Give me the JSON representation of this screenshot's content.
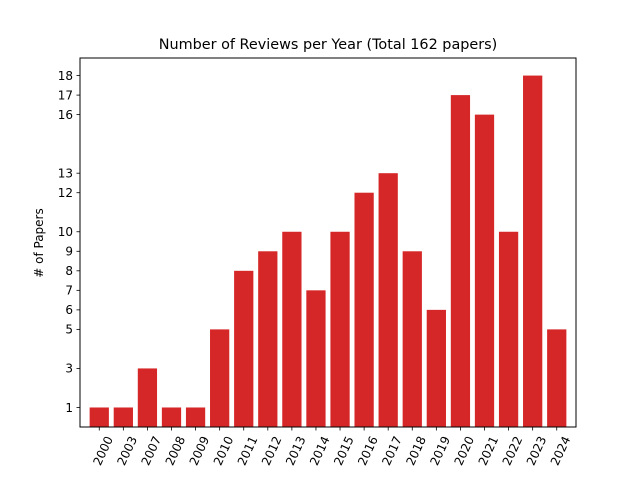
{
  "chart_data": {
    "type": "bar",
    "title": "Number of Reviews per Year (Total 162 papers)",
    "xlabel": "",
    "ylabel": "# of Papers",
    "categories": [
      "2000",
      "2003",
      "2007",
      "2008",
      "2009",
      "2010",
      "2011",
      "2012",
      "2013",
      "2014",
      "2015",
      "2016",
      "2017",
      "2018",
      "2019",
      "2020",
      "2021",
      "2022",
      "2023",
      "2024"
    ],
    "values": [
      1,
      1,
      3,
      1,
      1,
      5,
      8,
      9,
      10,
      7,
      10,
      12,
      13,
      9,
      6,
      17,
      16,
      10,
      18,
      5
    ],
    "yticks": [
      1,
      3,
      5,
      6,
      7,
      8,
      9,
      10,
      12,
      13,
      16,
      17,
      18
    ],
    "ylim": [
      0,
      18.9
    ],
    "bar_color": "#d62728",
    "grid": false,
    "legend": "none"
  }
}
